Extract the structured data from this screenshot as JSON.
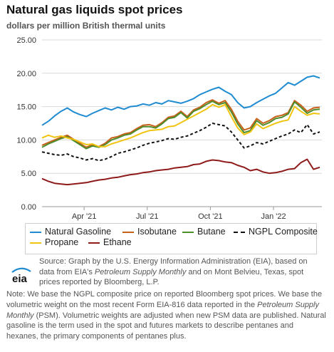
{
  "header": {
    "title": "Natural gas liquids spot prices",
    "subtitle": "dollars per million British thermal units"
  },
  "chart_data": {
    "type": "line",
    "title": "Natural gas liquids spot prices",
    "ylabel": "dollars per million British thermal units",
    "ylim": [
      0,
      25
    ],
    "yticks": [
      "0.00",
      "5.00",
      "10.00",
      "15.00",
      "20.00",
      "25.00"
    ],
    "xtick_labels": [
      "Apr '21",
      "Jul '21",
      "Oct '21",
      "Jan '22"
    ],
    "xtick_months": [
      3,
      6,
      9,
      12
    ],
    "x_start_month": 1.0,
    "x_end_month": 14.3,
    "grid": true,
    "legend_placement": "bottom",
    "series": [
      {
        "name": "Natural Gasoline",
        "color": "#1f8bd1",
        "dash": false,
        "x": [
          1.0,
          1.3,
          1.6,
          1.9,
          2.2,
          2.5,
          2.8,
          3.1,
          3.4,
          3.7,
          4.0,
          4.3,
          4.6,
          4.9,
          5.2,
          5.5,
          5.8,
          6.1,
          6.4,
          6.7,
          7.0,
          7.3,
          7.6,
          7.9,
          8.2,
          8.5,
          8.8,
          9.1,
          9.4,
          9.7,
          10.0,
          10.3,
          10.6,
          10.9,
          11.2,
          11.5,
          11.8,
          12.1,
          12.4,
          12.7,
          13.0,
          13.3,
          13.6,
          13.9,
          14.2
        ],
        "values": [
          12.2,
          12.8,
          13.6,
          14.3,
          14.8,
          14.2,
          13.8,
          13.5,
          14.0,
          14.4,
          14.8,
          14.5,
          14.9,
          14.6,
          15.0,
          15.1,
          15.4,
          15.2,
          15.6,
          15.4,
          15.9,
          15.7,
          15.5,
          15.8,
          16.2,
          16.8,
          17.2,
          17.6,
          17.9,
          17.3,
          16.8,
          15.6,
          14.8,
          15.0,
          15.6,
          16.1,
          16.6,
          17.0,
          17.8,
          18.6,
          18.2,
          18.8,
          19.4,
          19.6,
          19.3
        ]
      },
      {
        "name": "Isobutane",
        "color": "#c8601a",
        "dash": false,
        "x": [
          1.0,
          1.3,
          1.6,
          1.9,
          2.2,
          2.5,
          2.8,
          3.1,
          3.4,
          3.7,
          4.0,
          4.3,
          4.6,
          4.9,
          5.2,
          5.5,
          5.8,
          6.1,
          6.4,
          6.7,
          7.0,
          7.3,
          7.6,
          7.9,
          8.2,
          8.5,
          8.8,
          9.1,
          9.4,
          9.7,
          10.0,
          10.3,
          10.6,
          10.9,
          11.2,
          11.5,
          11.8,
          12.1,
          12.4,
          12.7,
          13.0,
          13.3,
          13.6,
          13.9,
          14.2
        ],
        "values": [
          9.2,
          9.6,
          10.0,
          10.4,
          10.7,
          10.1,
          9.5,
          8.9,
          9.3,
          9.0,
          9.5,
          10.3,
          10.5,
          10.9,
          11.1,
          11.7,
          12.2,
          12.3,
          12.0,
          12.6,
          13.4,
          13.6,
          14.3,
          13.5,
          14.5,
          14.9,
          15.6,
          16.0,
          15.5,
          15.9,
          14.6,
          12.8,
          11.5,
          11.8,
          13.2,
          12.5,
          12.9,
          13.5,
          13.7,
          14.1,
          15.9,
          15.2,
          14.3,
          14.8,
          14.9
        ]
      },
      {
        "name": "Butane",
        "color": "#4e8d2c",
        "dash": false,
        "x": [
          1.0,
          1.3,
          1.6,
          1.9,
          2.2,
          2.5,
          2.8,
          3.1,
          3.4,
          3.7,
          4.0,
          4.3,
          4.6,
          4.9,
          5.2,
          5.5,
          5.8,
          6.1,
          6.4,
          6.7,
          7.0,
          7.3,
          7.6,
          7.9,
          8.2,
          8.5,
          8.8,
          9.1,
          9.4,
          9.7,
          10.0,
          10.3,
          10.6,
          10.9,
          11.2,
          11.5,
          11.8,
          12.1,
          12.4,
          12.7,
          13.0,
          13.3,
          13.6,
          13.9,
          14.2
        ],
        "values": [
          8.9,
          9.4,
          9.8,
          10.2,
          10.5,
          9.9,
          9.3,
          8.7,
          9.1,
          8.9,
          9.3,
          10.0,
          10.3,
          10.7,
          10.9,
          11.5,
          12.0,
          12.0,
          11.8,
          12.4,
          13.2,
          13.4,
          14.1,
          13.3,
          14.3,
          14.7,
          15.3,
          15.8,
          15.3,
          15.6,
          14.2,
          12.4,
          11.1,
          11.4,
          12.9,
          12.2,
          12.6,
          13.2,
          13.4,
          13.9,
          15.7,
          14.9,
          14.0,
          14.5,
          14.6
        ]
      },
      {
        "name": "NGPL Composite",
        "color": "#111111",
        "dash": true,
        "x": [
          1.0,
          1.3,
          1.6,
          1.9,
          2.2,
          2.5,
          2.8,
          3.1,
          3.4,
          3.7,
          4.0,
          4.3,
          4.6,
          4.9,
          5.2,
          5.5,
          5.8,
          6.1,
          6.4,
          6.7,
          7.0,
          7.3,
          7.6,
          7.9,
          8.2,
          8.5,
          8.8,
          9.1,
          9.4,
          9.7,
          10.0,
          10.3,
          10.6,
          10.9,
          11.2,
          11.5,
          11.8,
          12.1,
          12.4,
          12.7,
          13.0,
          13.3,
          13.6,
          13.9,
          14.2
        ],
        "values": [
          8.2,
          8.0,
          7.8,
          7.7,
          7.9,
          7.5,
          7.3,
          7.0,
          7.2,
          6.9,
          7.1,
          7.5,
          8.0,
          8.2,
          8.5,
          8.8,
          9.2,
          9.5,
          9.7,
          9.9,
          10.2,
          10.1,
          10.4,
          10.6,
          11.0,
          11.4,
          11.9,
          12.5,
          12.3,
          12.1,
          11.2,
          10.0,
          8.8,
          9.1,
          9.6,
          9.4,
          9.8,
          10.2,
          10.6,
          10.9,
          11.5,
          11.1,
          12.3,
          10.9,
          11.2
        ]
      },
      {
        "name": "Propane",
        "color": "#f1c40f",
        "dash": false,
        "x": [
          1.0,
          1.3,
          1.6,
          1.9,
          2.2,
          2.5,
          2.8,
          3.1,
          3.4,
          3.7,
          4.0,
          4.3,
          4.6,
          4.9,
          5.2,
          5.5,
          5.8,
          6.1,
          6.4,
          6.7,
          7.0,
          7.3,
          7.6,
          7.9,
          8.2,
          8.5,
          8.8,
          9.1,
          9.4,
          9.7,
          10.0,
          10.3,
          10.6,
          10.9,
          11.2,
          11.5,
          11.8,
          12.1,
          12.4,
          12.7,
          13.0,
          13.3,
          13.6,
          13.9,
          14.2
        ],
        "values": [
          10.3,
          10.7,
          10.4,
          10.6,
          10.3,
          10.1,
          9.7,
          9.3,
          9.4,
          9.0,
          9.0,
          9.4,
          9.7,
          10.0,
          10.3,
          10.7,
          11.1,
          11.4,
          11.5,
          11.6,
          12.0,
          12.1,
          12.6,
          13.1,
          13.6,
          14.1,
          14.6,
          15.3,
          14.9,
          15.3,
          13.5,
          11.8,
          10.8,
          11.2,
          12.4,
          11.7,
          12.1,
          12.5,
          12.8,
          13.0,
          15.0,
          14.3,
          13.7,
          14.0,
          13.9
        ]
      },
      {
        "name": "Ethane",
        "color": "#8e1a1a",
        "dash": false,
        "x": [
          1.0,
          1.3,
          1.6,
          1.9,
          2.2,
          2.5,
          2.8,
          3.1,
          3.4,
          3.7,
          4.0,
          4.3,
          4.6,
          4.9,
          5.2,
          5.5,
          5.8,
          6.1,
          6.4,
          6.7,
          7.0,
          7.3,
          7.6,
          7.9,
          8.2,
          8.5,
          8.8,
          9.1,
          9.4,
          9.7,
          10.0,
          10.3,
          10.6,
          10.9,
          11.2,
          11.5,
          11.8,
          12.1,
          12.4,
          12.7,
          13.0,
          13.3,
          13.6,
          13.9,
          14.2
        ],
        "values": [
          4.2,
          3.8,
          3.5,
          3.4,
          3.3,
          3.4,
          3.5,
          3.6,
          3.8,
          4.0,
          4.1,
          4.3,
          4.4,
          4.6,
          4.8,
          4.9,
          5.1,
          5.2,
          5.4,
          5.5,
          5.6,
          5.8,
          5.9,
          6.0,
          6.3,
          6.4,
          6.8,
          7.0,
          6.9,
          6.7,
          6.6,
          6.2,
          5.9,
          5.4,
          5.6,
          5.2,
          5.0,
          5.1,
          5.3,
          5.6,
          5.7,
          6.6,
          7.1,
          5.6,
          5.9
        ]
      }
    ]
  },
  "legend": {
    "items": [
      "Natural Gasoline",
      "Isobutane",
      "Butane",
      "NGPL Composite",
      "Propane",
      "Ethane"
    ]
  },
  "source": {
    "prefix": "Source: Graph by the U.S. Energy Information Administration (EIA), based on data from EIA's ",
    "psm": "Petroleum Supply Monthly",
    "suffix": " and on Mont Belvieu, Texas, spot prices reported by Bloomberg, L.P."
  },
  "logo": {
    "text": "eia",
    "icon": "eia-logo"
  },
  "note": {
    "part1": "Note: We base the NGPL composite price on reported Bloomberg spot prices. We base the volumetric weight on the most recent Form EIA-816 data reported in the ",
    "psm": "Petroleum Supply Monthly",
    "part2": " (PSM). Volumetric weights are adjusted when new PSM data are published. Natural gasoline is the term used in the spot and futures markets to describe pentanes and hexanes, the primary components of pentanes plus."
  }
}
